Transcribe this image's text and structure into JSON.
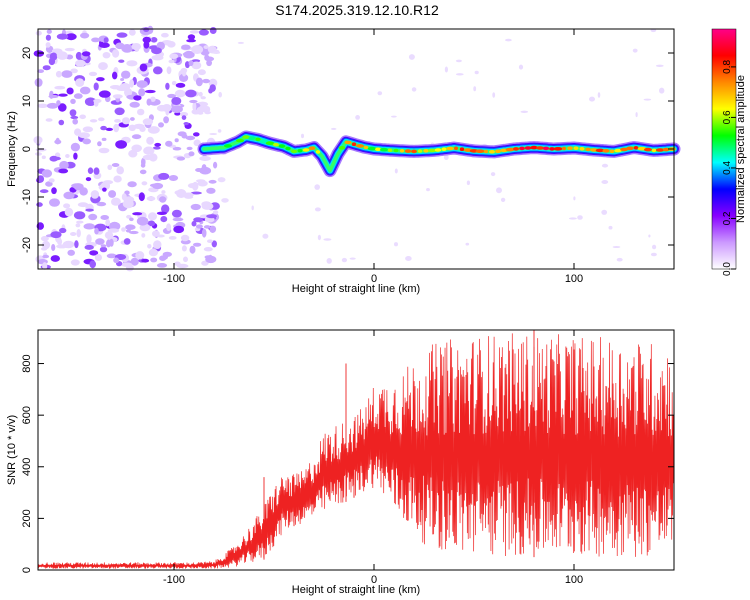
{
  "title": "S174.2025.319.12.10.R12",
  "chart_data": [
    {
      "type": "heatmap",
      "xlabel": "Height of straight line (km)",
      "ylabel": "Frequency (Hz)",
      "xlim": [
        -168,
        150
      ],
      "ylim": [
        -25,
        25
      ],
      "xticks": [
        -100,
        0,
        100
      ],
      "yticks": [
        -20,
        -10,
        0,
        10,
        20
      ],
      "colorbar": {
        "label": "Normalized spectral amplitude",
        "range": [
          0,
          0.95
        ],
        "ticks": [
          0,
          0.2,
          0.4,
          0.6,
          0.8
        ],
        "tick_labels": [
          "0.0",
          "0.2",
          "0.4",
          "0.6",
          "0.8"
        ],
        "colors": [
          "#ffffff",
          "#cc99ff",
          "#8800ff",
          "#0000ff",
          "#00ffff",
          "#00ff00",
          "#ffff00",
          "#ff8800",
          "#ff0000",
          "#ff0088"
        ]
      },
      "noise_region": {
        "x": [
          -168,
          -82
        ],
        "y": [
          -25,
          25
        ],
        "level": 0.15
      },
      "ridge": {
        "x": [
          -85,
          -75,
          -68,
          -64,
          -58,
          -52,
          -45,
          -40,
          -34,
          -30,
          -26,
          -24,
          -22,
          -18,
          -14,
          -10,
          -5,
          0,
          10,
          20,
          30,
          40,
          50,
          60,
          70,
          80,
          90,
          100,
          110,
          120,
          130,
          140,
          150
        ],
        "freq": [
          0,
          0.3,
          1.5,
          2.5,
          2.0,
          1.2,
          0.5,
          -0.5,
          -0.2,
          0.3,
          -1.5,
          -3.0,
          -4.5,
          -1.0,
          1.5,
          1.0,
          0.4,
          0,
          -0.3,
          -0.5,
          -0.3,
          0.2,
          -0.4,
          -0.6,
          0,
          0.3,
          0,
          0.2,
          -0.2,
          -0.5,
          0.3,
          -0.3,
          0
        ],
        "amplitude": [
          0.35,
          0.45,
          0.55,
          0.5,
          0.45,
          0.5,
          0.55,
          0.5,
          0.55,
          0.75,
          0.4,
          0.35,
          0.3,
          0.45,
          0.6,
          0.85,
          0.7,
          0.55,
          0.6,
          0.7,
          0.6,
          0.75,
          0.8,
          0.65,
          0.75,
          0.85,
          0.8,
          0.7,
          0.75,
          0.7,
          0.8,
          0.7,
          0.75
        ]
      }
    },
    {
      "type": "line",
      "xlabel": "Height of straight line (km)",
      "ylabel": "SNR (10 * v/v)",
      "xlim": [
        -168,
        150
      ],
      "ylim": [
        0,
        930
      ],
      "xticks": [
        -100,
        0,
        100
      ],
      "yticks": [
        0,
        200,
        400,
        600,
        800
      ],
      "color": "#ee2222",
      "envelope_x": [
        -168,
        -90,
        -80,
        -72,
        -65,
        -55,
        -50,
        -45,
        -40,
        -35,
        -30,
        -25,
        -20,
        -15,
        -10,
        -5,
        0,
        5,
        10,
        15,
        20,
        25,
        30,
        40,
        60,
        80,
        100,
        120,
        150
      ],
      "envelope_low": [
        5,
        5,
        5,
        8,
        20,
        40,
        90,
        150,
        170,
        180,
        200,
        220,
        240,
        260,
        280,
        300,
        320,
        280,
        220,
        180,
        140,
        100,
        80,
        60,
        50,
        50,
        50,
        50,
        50
      ],
      "envelope_high": [
        30,
        30,
        35,
        80,
        140,
        250,
        330,
        380,
        370,
        390,
        450,
        540,
        560,
        580,
        600,
        640,
        720,
        740,
        760,
        780,
        820,
        860,
        880,
        900,
        920,
        920,
        910,
        900,
        880
      ],
      "spikes": [
        {
          "x": -55,
          "y": 360
        },
        {
          "x": -40,
          "y": 360
        },
        {
          "x": -14,
          "y": 800
        },
        {
          "x": -10,
          "y": 480
        },
        {
          "x": 80,
          "y": 930
        }
      ]
    }
  ]
}
